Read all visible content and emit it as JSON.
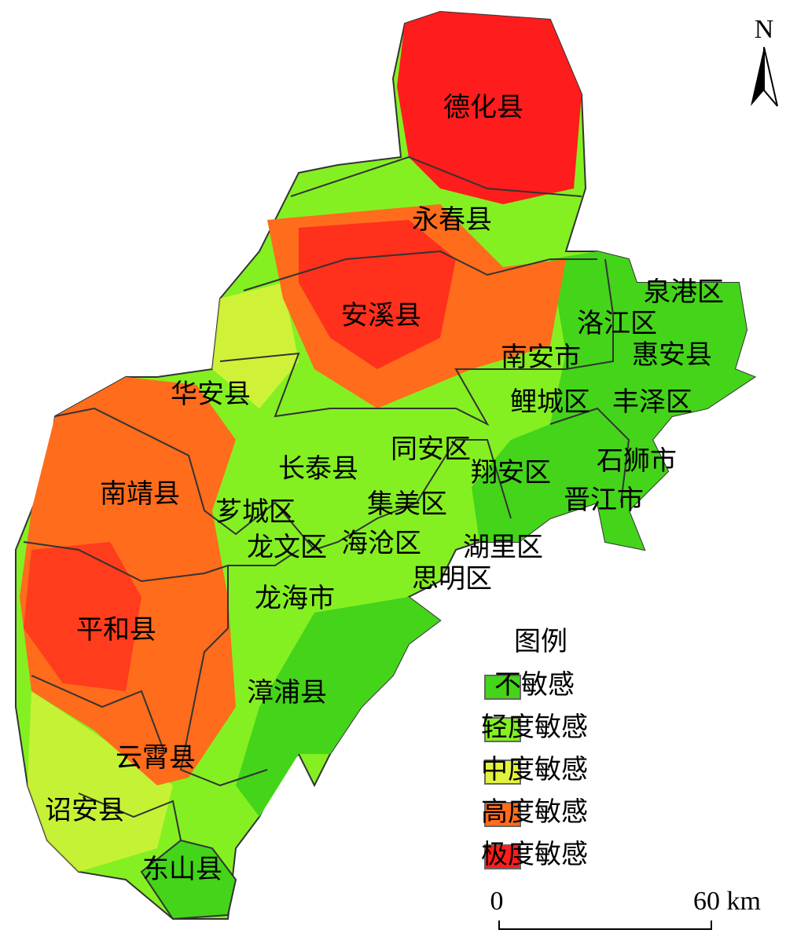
{
  "map": {
    "north": "N",
    "regions": [
      {
        "label": "德化县"
      },
      {
        "label": "永春县"
      },
      {
        "label": "安溪县"
      },
      {
        "label": "泉港区"
      },
      {
        "label": "洛江区"
      },
      {
        "label": "南安市"
      },
      {
        "label": "惠安县"
      },
      {
        "label": "鲤城区"
      },
      {
        "label": "丰泽区"
      },
      {
        "label": "华安县"
      },
      {
        "label": "同安区"
      },
      {
        "label": "长泰县"
      },
      {
        "label": "翔安区"
      },
      {
        "label": "石狮市"
      },
      {
        "label": "南靖县"
      },
      {
        "label": "芗城区"
      },
      {
        "label": "集美区"
      },
      {
        "label": "晋江市"
      },
      {
        "label": "龙文区"
      },
      {
        "label": "海沧区"
      },
      {
        "label": "湖里区"
      },
      {
        "label": "思明区"
      },
      {
        "label": "龙海市"
      },
      {
        "label": "平和县"
      },
      {
        "label": "漳浦县"
      },
      {
        "label": "云霄县"
      },
      {
        "label": "诏安县"
      },
      {
        "label": "东山县"
      }
    ],
    "legend": {
      "title": "图例",
      "items": [
        {
          "label": "不敏感",
          "color": "#44d41a"
        },
        {
          "label": "轻度敏感",
          "color": "#84f022"
        },
        {
          "label": "中度敏感",
          "color": "#e2f23e"
        },
        {
          "label": "高度敏感",
          "color": "#ff6c1c"
        },
        {
          "label": "极度敏感",
          "color": "#ff1c1c"
        }
      ]
    },
    "scale_bar": {
      "labels": [
        "0",
        "60 km"
      ]
    }
  }
}
